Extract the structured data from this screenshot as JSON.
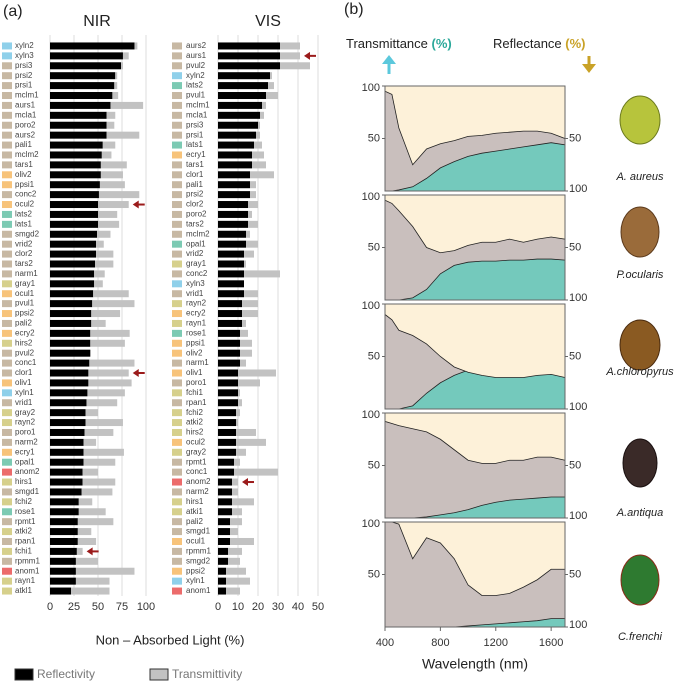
{
  "chart_data": [
    {
      "type": "hbar",
      "panel_label": "(a)",
      "title": "NIR",
      "xlabel": "Non – Absorbed Light (%)",
      "categories": [
        "xyln2",
        "xyln3",
        "prsi3",
        "prsi2",
        "prsi1",
        "mclm1",
        "aurs1",
        "mcla1",
        "poro2",
        "aurs2",
        "pali1",
        "mclm2",
        "tars1",
        "oliv2",
        "ppsi1",
        "conc2",
        "ocul2",
        "lats2",
        "lats1",
        "smgd2",
        "vrid2",
        "clor2",
        "tars2",
        "narm1",
        "gray1",
        "ocul1",
        "pvul1",
        "ppsi2",
        "pali2",
        "ecry2",
        "hirs2",
        "pvul2",
        "conc1",
        "clor1",
        "oliv1",
        "xyln1",
        "vrid1",
        "gray2",
        "rayn2",
        "poro1",
        "narm2",
        "ecry1",
        "opal1",
        "anom2",
        "hirs1",
        "smgd1",
        "fchi2",
        "rose1",
        "rpmt1",
        "atki2",
        "rpan1",
        "fchi1",
        "rpmm1",
        "anom1",
        "rayn1",
        "atkl1"
      ],
      "swatch_colors": [
        "#8fd0ea",
        "#8fd0ea",
        "#c7b8a3",
        "#c7b8a3",
        "#c7b8a3",
        "#c7b8a3",
        "#c7b8a3",
        "#c7b8a3",
        "#c7b8a3",
        "#c7b8a3",
        "#c7b8a3",
        "#c7b8a3",
        "#c7b8a3",
        "#f7c37a",
        "#f7c37a",
        "#c7b8a3",
        "#f7c37a",
        "#7ccab3",
        "#7ccab3",
        "#c7b8a3",
        "#c7b8a3",
        "#c7b8a3",
        "#c7b8a3",
        "#c7b8a3",
        "#d6d08c",
        "#f7c37a",
        "#c7b8a3",
        "#f7c37a",
        "#c7b8a3",
        "#f7c37a",
        "#d6d08c",
        "#c7b8a3",
        "#c7b8a3",
        "#c7b8a3",
        "#f7c37a",
        "#8fd0ea",
        "#c7b8a3",
        "#d6d08c",
        "#d6d08c",
        "#c7b8a3",
        "#c7b8a3",
        "#f7c37a",
        "#7ccab3",
        "#ec6b6b",
        "#d6d08c",
        "#c7b8a3",
        "#d6d08c",
        "#7ccab3",
        "#c7b8a3",
        "#d6d08c",
        "#c7b8a3",
        "#d6d08c",
        "#c7b8a3",
        "#ec6b6b",
        "#d6d08c",
        "#d6d08c"
      ],
      "series": [
        {
          "name": "Reflectivity",
          "color": "#000000",
          "values": [
            88,
            76,
            74,
            68,
            67,
            65,
            63,
            59,
            59,
            59,
            55,
            54,
            53,
            53,
            52,
            51,
            50,
            50,
            50,
            49,
            48,
            48,
            47,
            46,
            46,
            45,
            44,
            43,
            43,
            42,
            42,
            42,
            41,
            40,
            40,
            39,
            38,
            37,
            37,
            36,
            35,
            35,
            35,
            34,
            34,
            33,
            30,
            30,
            29,
            29,
            29,
            28,
            27,
            27,
            27,
            22
          ]
        },
        {
          "name": "Transmittivity",
          "color": "#c2c2c2",
          "values": [
            3,
            6,
            2,
            2,
            3,
            6,
            34,
            9,
            8,
            34,
            13,
            10,
            27,
            23,
            26,
            42,
            32,
            20,
            22,
            14,
            8,
            18,
            19,
            11,
            9,
            37,
            44,
            30,
            15,
            41,
            36,
            0,
            47,
            42,
            45,
            39,
            32,
            13,
            39,
            30,
            13,
            42,
            33,
            16,
            34,
            32,
            14,
            28,
            37,
            14,
            19,
            6,
            23,
            61,
            35,
            40
          ]
        }
      ],
      "arrows": [
        "ocul2",
        "clor1",
        "fchi1"
      ],
      "xlim": [
        0,
        100
      ],
      "xticks": [
        0,
        25,
        50,
        75,
        100
      ],
      "grid": true
    },
    {
      "type": "hbar",
      "title": "VIS",
      "categories": [
        "aurs2",
        "aurs1",
        "pvul2",
        "xyln2",
        "lats2",
        "pvul1",
        "mclm1",
        "mcla1",
        "prsi3",
        "prsi1",
        "lats1",
        "ecry1",
        "tars1",
        "clor1",
        "pali1",
        "prsi2",
        "clor2",
        "poro2",
        "tars2",
        "mclm2",
        "opal1",
        "vrid2",
        "gray1",
        "conc2",
        "xyln3",
        "vrid1",
        "rayn2",
        "ecry2",
        "rayn1",
        "rose1",
        "ppsi1",
        "oliv2",
        "narm1",
        "oliv1",
        "poro1",
        "fchi1",
        "rpan1",
        "fchi2",
        "atki2",
        "hirs2",
        "ocul2",
        "gray2",
        "rpmt1",
        "conc1",
        "anom2",
        "narm2",
        "hirs1",
        "atki1",
        "pali2",
        "smgd1",
        "ocul1",
        "rpmm1",
        "smgd2",
        "ppsi2",
        "xyln1",
        "anom1"
      ],
      "swatch_colors": [
        "#c7b8a3",
        "#c7b8a3",
        "#c7b8a3",
        "#8fd0ea",
        "#7ccab3",
        "#c7b8a3",
        "#c7b8a3",
        "#c7b8a3",
        "#c7b8a3",
        "#c7b8a3",
        "#7ccab3",
        "#f7c37a",
        "#c7b8a3",
        "#c7b8a3",
        "#c7b8a3",
        "#c7b8a3",
        "#c7b8a3",
        "#c7b8a3",
        "#c7b8a3",
        "#c7b8a3",
        "#7ccab3",
        "#c7b8a3",
        "#d6d08c",
        "#c7b8a3",
        "#8fd0ea",
        "#c7b8a3",
        "#d6d08c",
        "#f7c37a",
        "#d6d08c",
        "#7ccab3",
        "#f7c37a",
        "#f7c37a",
        "#c7b8a3",
        "#f7c37a",
        "#c7b8a3",
        "#d6d08c",
        "#c7b8a3",
        "#d6d08c",
        "#d6d08c",
        "#d6d08c",
        "#f7c37a",
        "#d6d08c",
        "#c7b8a3",
        "#c7b8a3",
        "#ec6b6b",
        "#c7b8a3",
        "#d6d08c",
        "#d6d08c",
        "#c7b8a3",
        "#c7b8a3",
        "#f7c37a",
        "#c7b8a3",
        "#c7b8a3",
        "#f7c37a",
        "#8fd0ea",
        "#ec6b6b"
      ],
      "series": [
        {
          "color": "#000000",
          "values": [
            31,
            31,
            31,
            26,
            25,
            24,
            22,
            21,
            20,
            19,
            18,
            17,
            17,
            16,
            16,
            16,
            15,
            15,
            15,
            14,
            14,
            13,
            13,
            13,
            13,
            13,
            12,
            12,
            12,
            11,
            11,
            11,
            11,
            10,
            10,
            10,
            10,
            9,
            9,
            9,
            9,
            9,
            8,
            8,
            7,
            7,
            7,
            7,
            6,
            6,
            6,
            5,
            5,
            4,
            4,
            4
          ]
        },
        {
          "color": "#c2c2c2",
          "values": [
            10,
            10,
            15,
            1,
            3,
            6,
            2,
            2,
            1,
            2,
            4,
            6,
            7,
            12,
            3,
            3,
            5,
            2,
            5,
            2,
            6,
            5,
            1,
            18,
            0,
            7,
            8,
            8,
            2,
            4,
            6,
            6,
            3,
            19,
            11,
            1,
            2,
            2,
            1,
            10,
            15,
            5,
            3,
            22,
            3,
            3,
            11,
            5,
            6,
            4,
            12,
            7,
            6,
            10,
            12,
            7
          ]
        }
      ],
      "arrows": [
        "aurs1",
        "anom2"
      ],
      "xlim": [
        0,
        50
      ],
      "xticks": [
        0,
        10,
        20,
        30,
        40,
        50
      ],
      "grid": true
    },
    {
      "type": "area",
      "panel_label": "(b)",
      "unit": "(%)",
      "title": "A. aureus",
      "x": [
        400,
        450,
        500,
        600,
        700,
        800,
        900,
        1000,
        1100,
        1200,
        1300,
        1400,
        1500,
        1600,
        1700
      ],
      "series": [
        {
          "name": "Transmittance",
          "color": "#74c9bc",
          "values": [
            0,
            0,
            1,
            4,
            12,
            22,
            28,
            33,
            36,
            38,
            40,
            42,
            44,
            46,
            44
          ]
        },
        {
          "name": "Reflectance",
          "color": "#fdf1d9",
          "axis": "y2",
          "values": [
            5,
            8,
            40,
            75,
            60,
            55,
            52,
            48,
            47,
            45,
            44,
            43,
            43,
            45,
            50
          ]
        }
      ],
      "xlim": [
        400,
        1700
      ],
      "ylim": [
        0,
        100
      ],
      "yticks": [
        50,
        100
      ],
      "y2lim": [
        100,
        0
      ],
      "y2ticks": [
        50,
        100
      ]
    },
    {
      "type": "area",
      "title": "P.ocularis",
      "x": [
        400,
        450,
        500,
        600,
        700,
        800,
        900,
        1000,
        1100,
        1200,
        1300,
        1400,
        1500,
        1600,
        1700
      ],
      "series": [
        {
          "color": "#74c9bc",
          "values": [
            0,
            0,
            0,
            2,
            10,
            25,
            33,
            36,
            37,
            37,
            38,
            38,
            39,
            39,
            38
          ]
        },
        {
          "color": "#fdf1d9",
          "axis": "y2",
          "values": [
            5,
            8,
            15,
            30,
            50,
            55,
            53,
            48,
            45,
            45,
            42,
            45,
            42,
            40,
            42
          ]
        }
      ],
      "xlim": [
        400,
        1700
      ],
      "ylim": [
        0,
        100
      ],
      "yticks": [
        50,
        100
      ],
      "y2lim": [
        100,
        0
      ],
      "y2ticks": [
        50,
        100
      ]
    },
    {
      "type": "area",
      "title": "A.chloropyrus",
      "x": [
        400,
        450,
        500,
        600,
        700,
        800,
        900,
        1000,
        1100,
        1200,
        1300,
        1400,
        1500,
        1600,
        1700
      ],
      "series": [
        {
          "color": "#74c9bc",
          "values": [
            0,
            0,
            0,
            3,
            15,
            25,
            32,
            37,
            40,
            42,
            44,
            46,
            48,
            50,
            50
          ]
        },
        {
          "color": "#fdf1d9",
          "axis": "y2",
          "values": [
            10,
            15,
            25,
            30,
            38,
            50,
            60,
            65,
            68,
            70,
            70,
            70,
            68,
            67,
            70
          ]
        }
      ],
      "xlim": [
        400,
        1700
      ],
      "ylim": [
        0,
        100
      ],
      "yticks": [
        50,
        100
      ],
      "y2lim": [
        100,
        0
      ],
      "y2ticks": [
        50,
        100
      ]
    },
    {
      "type": "area",
      "title": "A.antiqua",
      "x": [
        400,
        450,
        500,
        600,
        700,
        800,
        900,
        1000,
        1100,
        1200,
        1300,
        1400,
        1500,
        1600,
        1700
      ],
      "series": [
        {
          "color": "#74c9bc",
          "values": [
            0,
            0,
            0,
            0,
            1,
            3,
            5,
            8,
            12,
            15,
            17,
            18,
            19,
            20,
            20
          ]
        },
        {
          "color": "#fdf1d9",
          "axis": "y2",
          "values": [
            8,
            10,
            12,
            15,
            18,
            25,
            35,
            45,
            48,
            48,
            45,
            45,
            42,
            42,
            45
          ]
        }
      ],
      "xlim": [
        400,
        1700
      ],
      "ylim": [
        0,
        100
      ],
      "yticks": [
        50,
        100
      ],
      "y2lim": [
        100,
        0
      ],
      "y2ticks": [
        50,
        100
      ]
    },
    {
      "type": "area",
      "title": "C.frenchi",
      "xlabel": "Wavelength (nm)",
      "x": [
        400,
        450,
        500,
        600,
        700,
        800,
        900,
        1000,
        1100,
        1200,
        1300,
        1400,
        1500,
        1600,
        1700
      ],
      "series": [
        {
          "color": "#74c9bc",
          "values": [
            0,
            0,
            0,
            0,
            0,
            0,
            0,
            1,
            2,
            3,
            4,
            5,
            6,
            8,
            8
          ]
        },
        {
          "color": "#fdf1d9",
          "axis": "y2",
          "values": [
            0,
            0,
            2,
            35,
            15,
            20,
            35,
            60,
            70,
            70,
            68,
            62,
            55,
            45,
            45
          ]
        }
      ],
      "xlim": [
        400,
        1700
      ],
      "ylim": [
        0,
        100
      ],
      "yticks": [
        50,
        100
      ],
      "y2lim": [
        100,
        0
      ],
      "y2ticks": [
        50,
        100
      ],
      "xticks": [
        400,
        800,
        1200,
        1600
      ]
    }
  ]
}
